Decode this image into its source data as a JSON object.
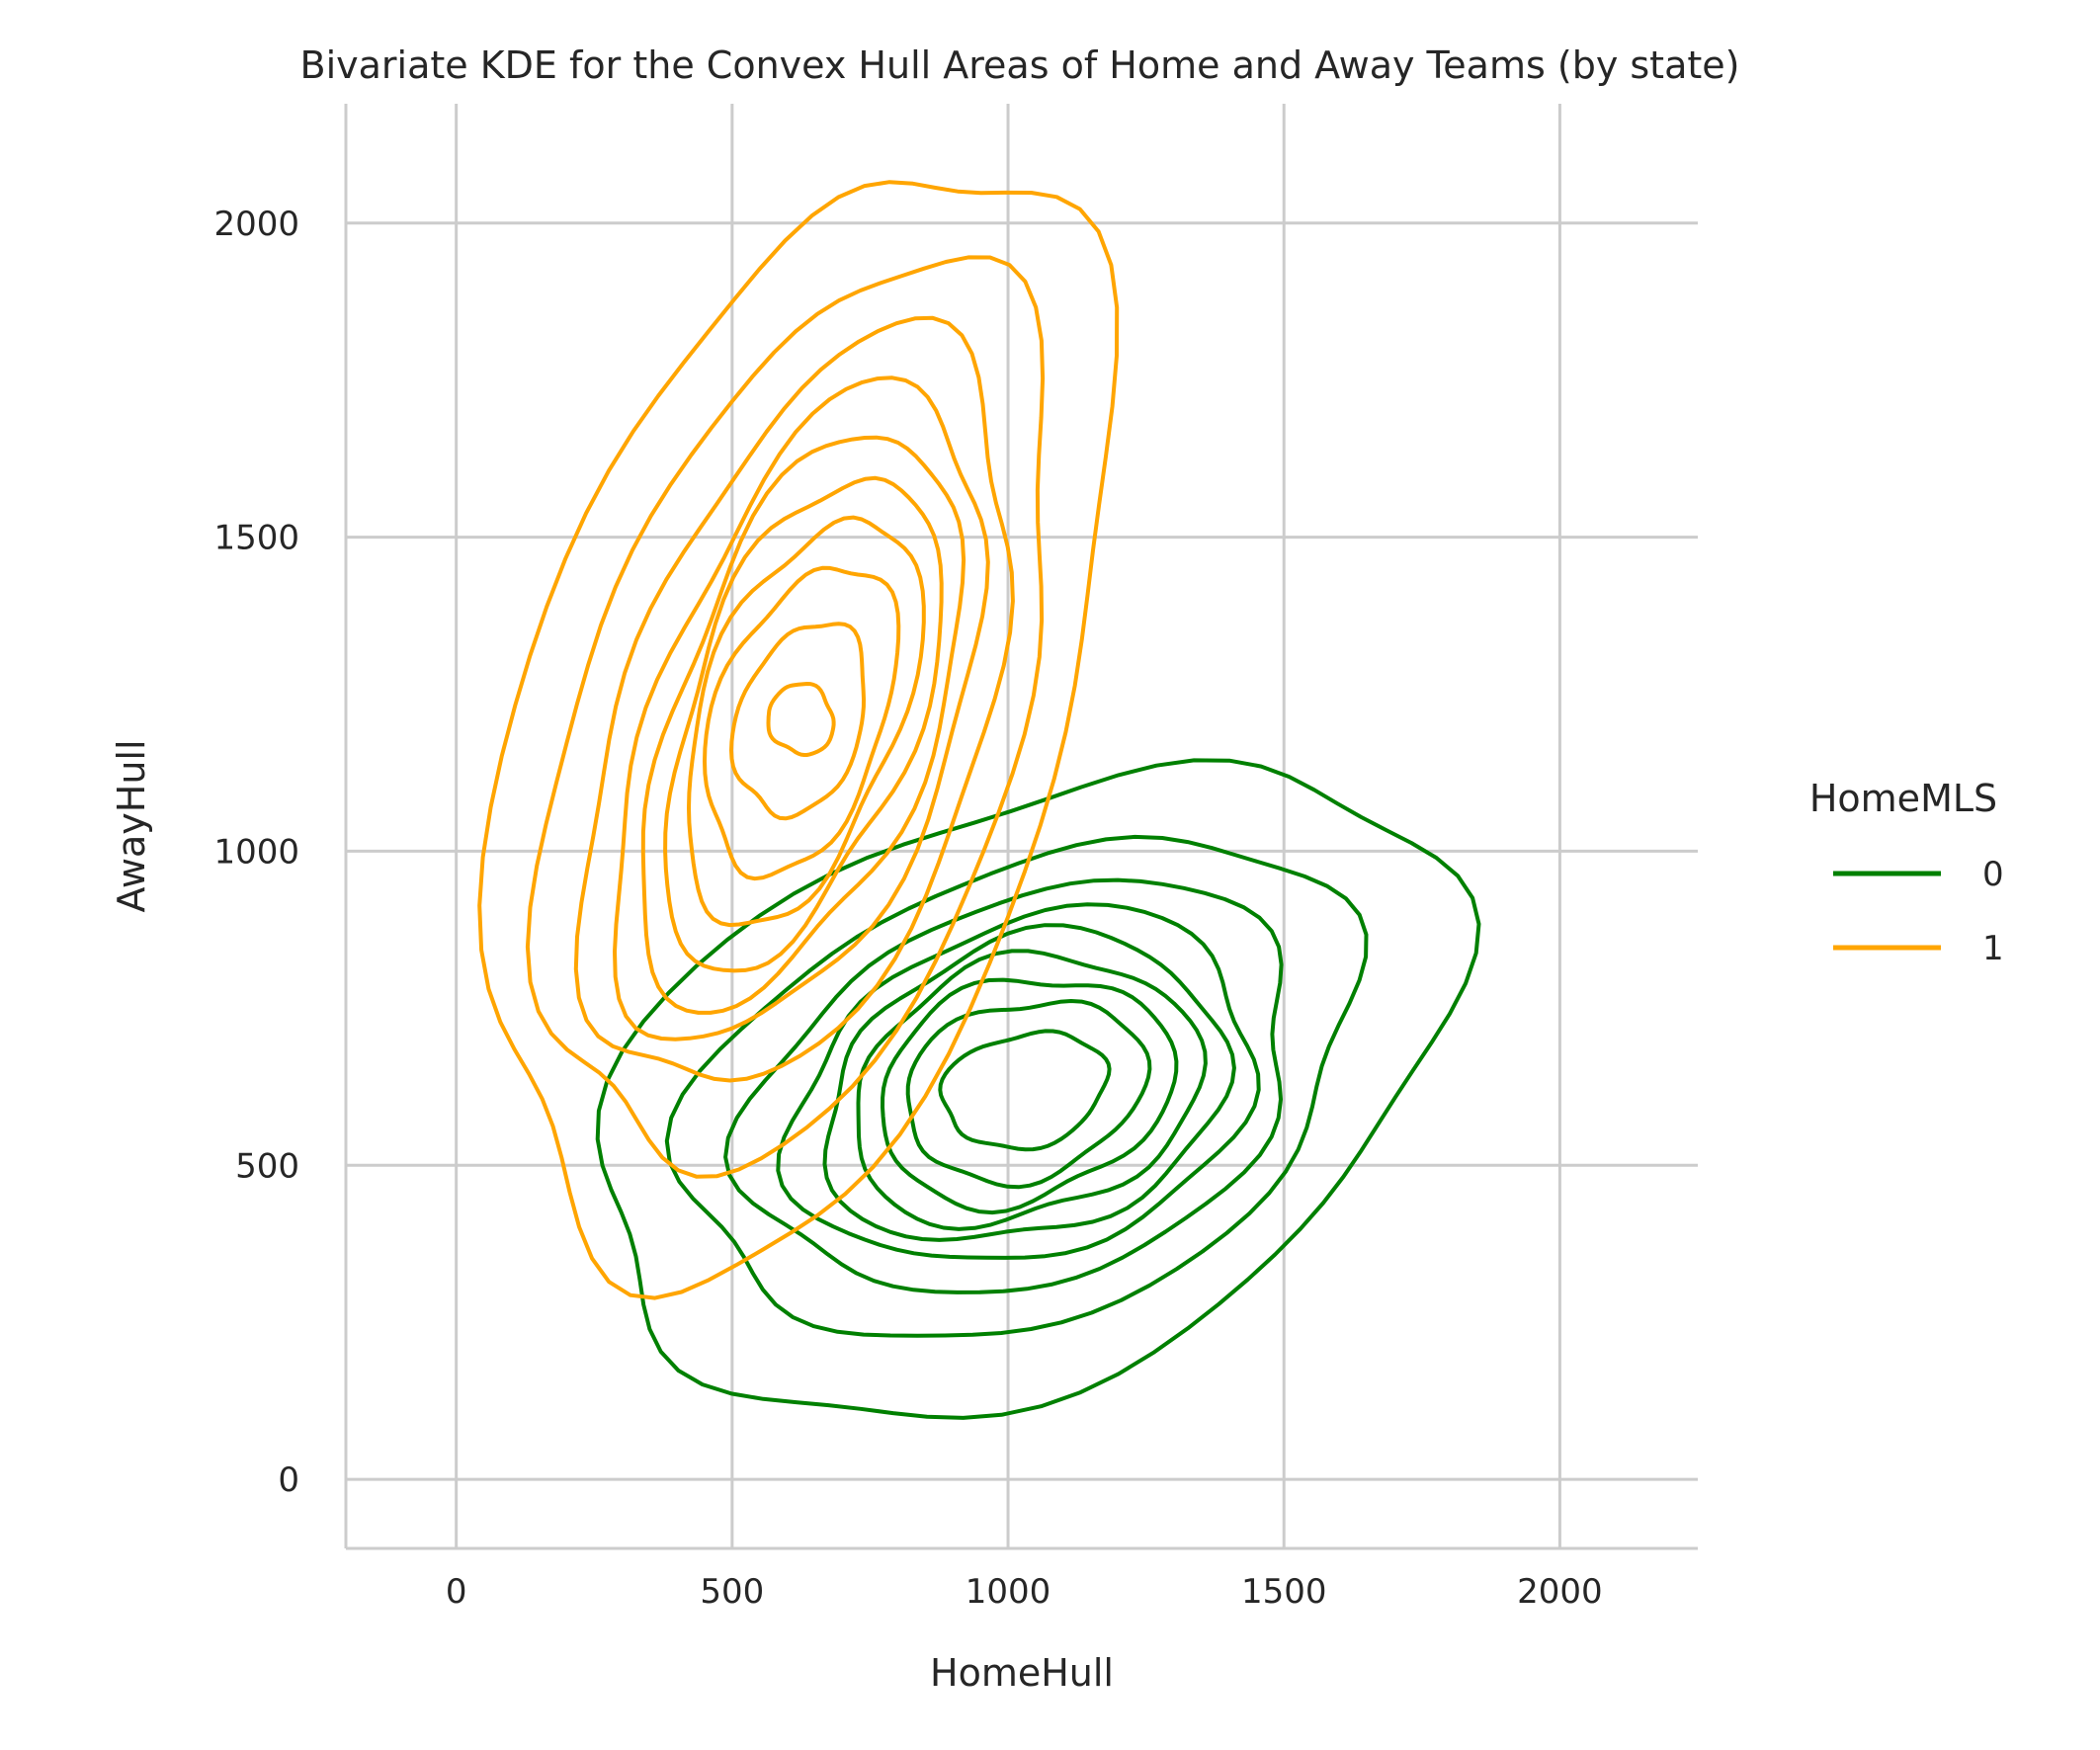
{
  "chart_data": {
    "type": "kde_contour",
    "title": "Bivariate KDE for the Convex Hull Areas of Home and Away Teams (by state)",
    "xlabel": "HomeHull",
    "ylabel": "AwayHull",
    "xlim": [
      -200,
      2250
    ],
    "ylim": [
      -110,
      2190
    ],
    "xticks": [
      0,
      500,
      1000,
      1500,
      2000
    ],
    "yticks": [
      0,
      500,
      1000,
      1500,
      2000
    ],
    "grid": true,
    "legend": {
      "title": "HomeMLS",
      "placement": "right",
      "entries": [
        {
          "label": "0",
          "color": "#008000"
        },
        {
          "label": "1",
          "color": "#FFA500"
        }
      ]
    },
    "series": [
      {
        "name": "0",
        "color": "#008000",
        "center": [
          1030,
          620
        ],
        "levels": [
          {
            "rx": 150,
            "ry": 90,
            "angle": 0.16
          },
          {
            "rx": 220,
            "ry": 140,
            "angle": 0.2
          },
          {
            "rx": 270,
            "ry": 175,
            "angle": 0.22
          },
          {
            "rx": 320,
            "ry": 205,
            "angle": 0.24
          },
          {
            "rx": 370,
            "ry": 235,
            "angle": 0.26
          },
          {
            "rx": 430,
            "ry": 265,
            "angle": 0.28
          },
          {
            "rx": 510,
            "ry": 305,
            "angle": 0.3
          },
          {
            "rx": 630,
            "ry": 360,
            "angle": 0.33
          },
          {
            "rx": 810,
            "ry": 460,
            "angle": 0.36
          }
        ]
      },
      {
        "name": "1",
        "color": "#FFA500",
        "center": [
          625,
          1210
        ],
        "levels": [
          {
            "rx": 55,
            "ry": 60,
            "angle": 1.1
          },
          {
            "rx": 160,
            "ry": 110,
            "angle": 1.15
          },
          {
            "rx": 260,
            "ry": 150,
            "angle": 1.15
          },
          {
            "rx": 345,
            "ry": 175,
            "angle": 1.15
          },
          {
            "rx": 420,
            "ry": 200,
            "angle": 1.15
          },
          {
            "rx": 490,
            "ry": 230,
            "angle": 1.15
          },
          {
            "rx": 560,
            "ry": 265,
            "angle": 1.15
          },
          {
            "rx": 640,
            "ry": 320,
            "angle": 1.17
          },
          {
            "rx": 760,
            "ry": 390,
            "angle": 1.18
          },
          {
            "rx": 930,
            "ry": 480,
            "angle": 1.2
          }
        ]
      }
    ]
  }
}
